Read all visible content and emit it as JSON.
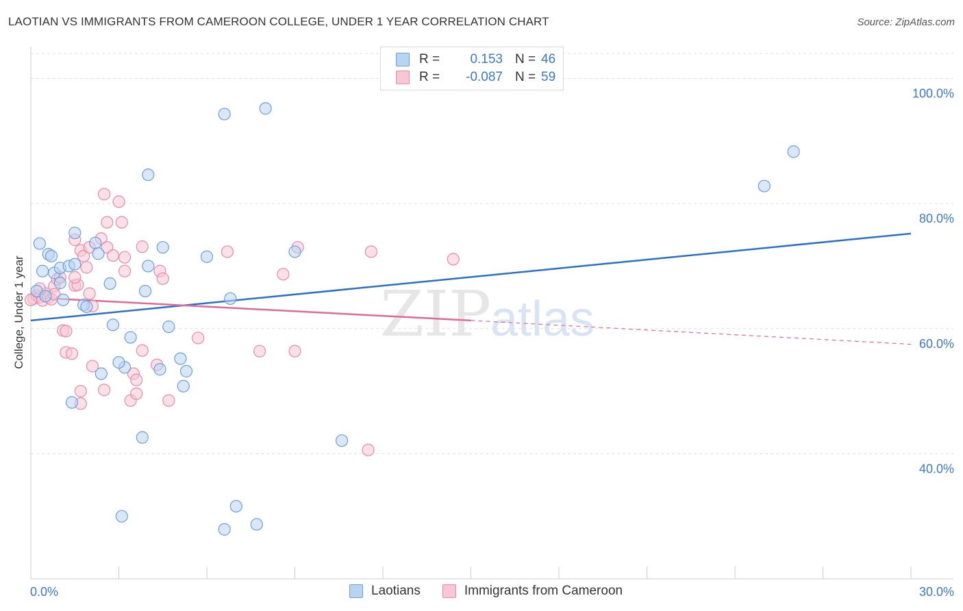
{
  "title": "LAOTIAN VS IMMIGRANTS FROM CAMEROON COLLEGE, UNDER 1 YEAR CORRELATION CHART",
  "source": "Source: ZipAtlas.com",
  "watermark": {
    "zip": "ZIP",
    "atlas": "atlas"
  },
  "legend": {
    "rows": [
      {
        "r_label": "R =",
        "r_value": "0.153",
        "n_label": "N =",
        "n_value": "46"
      },
      {
        "r_label": "R =",
        "r_value": "-0.087",
        "n_label": "N =",
        "n_value": "59"
      }
    ]
  },
  "bottom_legend": [
    "Laotians",
    "Immigrants from Cameroon"
  ],
  "colors": {
    "blue_fill": "#b9d3f3",
    "blue_stroke": "#6a9fdc",
    "blue_line": "#2b6fcc",
    "pink_fill": "#f8c6d6",
    "pink_stroke": "#e98aa8",
    "pink_line": "#e06a93",
    "axis_text": "#3a78c9",
    "grid": "#dddddd"
  },
  "chart_data": {
    "type": "scatter",
    "title": "LAOTIAN VS IMMIGRANTS FROM CAMEROON COLLEGE, UNDER 1 YEAR CORRELATION CHART",
    "xlabel": "",
    "ylabel": "College, Under 1 year",
    "xlim": [
      0,
      30
    ],
    "ylim": [
      20,
      104
    ],
    "x_tick_labels": [
      "0.0%",
      "30.0%"
    ],
    "y_ticks": [
      40,
      60,
      80,
      100
    ],
    "y_tick_labels": [
      "40.0%",
      "60.0%",
      "80.0%",
      "100.0%"
    ],
    "grid": true,
    "legend_position": "top-center",
    "series": [
      {
        "name": "Laotians",
        "r": 0.153,
        "n": 46,
        "trend": {
          "x": [
            0,
            30
          ],
          "y": [
            61.3,
            75.2
          ]
        },
        "points": [
          [
            0.2,
            66.0
          ],
          [
            0.4,
            69.2
          ],
          [
            0.5,
            65.2
          ],
          [
            0.3,
            73.6
          ],
          [
            0.6,
            71.9
          ],
          [
            0.7,
            71.6
          ],
          [
            0.8,
            68.9
          ],
          [
            1.0,
            67.3
          ],
          [
            1.1,
            64.6
          ],
          [
            1.0,
            69.7
          ],
          [
            1.3,
            70.0
          ],
          [
            1.5,
            70.3
          ],
          [
            1.5,
            75.3
          ],
          [
            1.8,
            63.8
          ],
          [
            1.9,
            63.5
          ],
          [
            2.2,
            73.7
          ],
          [
            2.3,
            72.0
          ],
          [
            2.7,
            67.2
          ],
          [
            2.8,
            60.6
          ],
          [
            3.2,
            53.8
          ],
          [
            3.0,
            54.6
          ],
          [
            3.4,
            58.6
          ],
          [
            3.8,
            42.6
          ],
          [
            3.9,
            66.0
          ],
          [
            4.0,
            70.0
          ],
          [
            4.0,
            84.6
          ],
          [
            4.4,
            53.5
          ],
          [
            4.5,
            73.0
          ],
          [
            4.7,
            60.3
          ],
          [
            5.1,
            55.2
          ],
          [
            5.2,
            50.8
          ],
          [
            5.3,
            53.2
          ],
          [
            6.0,
            71.5
          ],
          [
            6.6,
            94.3
          ],
          [
            6.8,
            64.8
          ],
          [
            3.1,
            30.0
          ],
          [
            6.6,
            27.9
          ],
          [
            7.0,
            31.6
          ],
          [
            7.7,
            28.7
          ],
          [
            8.0,
            95.2
          ],
          [
            9.0,
            72.3
          ],
          [
            10.6,
            42.1
          ],
          [
            25.0,
            82.8
          ],
          [
            26.0,
            88.3
          ],
          [
            1.4,
            48.2
          ],
          [
            2.4,
            52.8
          ]
        ]
      },
      {
        "name": "Immigrants from Cameroon",
        "r": -0.087,
        "n": 59,
        "trend": {
          "x": [
            0,
            15
          ],
          "y": [
            65.0,
            61.3
          ]
        },
        "trend_dashed": {
          "x": [
            15,
            30
          ],
          "y": [
            61.3,
            57.5
          ]
        },
        "points": [
          [
            0.1,
            64.8
          ],
          [
            0.2,
            65.3
          ],
          [
            0.3,
            65.0
          ],
          [
            0.4,
            64.5
          ],
          [
            0.5,
            65.6
          ],
          [
            0.6,
            65.0
          ],
          [
            0.7,
            64.7
          ],
          [
            0.8,
            66.8
          ],
          [
            0.9,
            67.9
          ],
          [
            1.0,
            68.2
          ],
          [
            0.8,
            65.5
          ],
          [
            1.1,
            59.7
          ],
          [
            1.2,
            59.6
          ],
          [
            1.2,
            56.2
          ],
          [
            1.4,
            56.0
          ],
          [
            1.5,
            66.9
          ],
          [
            1.6,
            67.0
          ],
          [
            1.5,
            68.2
          ],
          [
            1.5,
            74.2
          ],
          [
            1.7,
            72.5
          ],
          [
            1.8,
            71.6
          ],
          [
            1.9,
            69.8
          ],
          [
            1.7,
            50.0
          ],
          [
            1.7,
            48.0
          ],
          [
            2.0,
            73.0
          ],
          [
            2.0,
            65.6
          ],
          [
            2.1,
            63.6
          ],
          [
            2.1,
            54.0
          ],
          [
            2.4,
            74.4
          ],
          [
            2.5,
            50.2
          ],
          [
            2.5,
            81.5
          ],
          [
            2.6,
            77.0
          ],
          [
            2.6,
            73.0
          ],
          [
            2.8,
            71.7
          ],
          [
            3.0,
            80.3
          ],
          [
            3.1,
            77.0
          ],
          [
            3.2,
            71.4
          ],
          [
            3.2,
            69.2
          ],
          [
            3.5,
            52.8
          ],
          [
            3.4,
            48.5
          ],
          [
            3.6,
            51.8
          ],
          [
            3.6,
            49.6
          ],
          [
            3.8,
            73.1
          ],
          [
            3.8,
            56.5
          ],
          [
            4.3,
            54.2
          ],
          [
            4.4,
            69.2
          ],
          [
            4.5,
            68.0
          ],
          [
            4.7,
            48.5
          ],
          [
            5.7,
            58.5
          ],
          [
            6.7,
            72.3
          ],
          [
            7.8,
            56.4
          ],
          [
            8.6,
            68.7
          ],
          [
            9.0,
            56.4
          ],
          [
            9.1,
            73.0
          ],
          [
            11.6,
            72.3
          ],
          [
            11.5,
            40.6
          ],
          [
            14.4,
            71.1
          ],
          [
            0.0,
            64.6
          ],
          [
            0.3,
            66.4
          ]
        ]
      }
    ]
  }
}
